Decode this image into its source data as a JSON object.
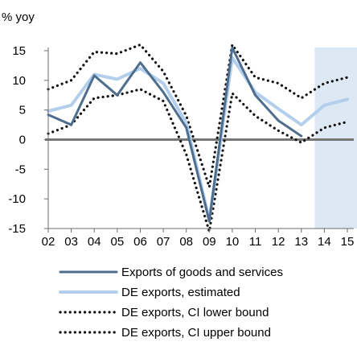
{
  "chart_data": {
    "type": "line",
    "ylabel": "% yoy",
    "ylim": [
      -15,
      15
    ],
    "yticks": [
      15,
      10,
      5,
      0,
      -5,
      -10,
      -15
    ],
    "x": [
      2,
      3,
      4,
      5,
      6,
      7,
      8,
      9,
      10,
      11,
      12,
      13,
      14,
      15
    ],
    "xticklabels": [
      "02",
      "03",
      "04",
      "05",
      "06",
      "07",
      "08",
      "09",
      "10",
      "11",
      "12",
      "13",
      "14",
      "15"
    ],
    "grid": false,
    "zero_line": true,
    "shaded_region": {
      "from": 14,
      "to": 15,
      "color": "#dde8f5"
    },
    "legend_position": "bottom",
    "series": [
      {
        "name": "Exports of goods and services",
        "color": "#4f6e8e",
        "style": "solid",
        "x": [
          2,
          3,
          4,
          5,
          6,
          7,
          8,
          9,
          10,
          11,
          12,
          13
        ],
        "values": [
          4.2,
          2.5,
          10.8,
          7.5,
          13.0,
          8.0,
          2.0,
          -13.8,
          15.5,
          7.5,
          3.2,
          0.6
        ]
      },
      {
        "name": "DE exports, estimated",
        "color": "#b3cfec",
        "style": "solid",
        "x": [
          2,
          3,
          4,
          5,
          6,
          7,
          8,
          9,
          10,
          11,
          12,
          13,
          14,
          15
        ],
        "values": [
          4.8,
          5.8,
          11.0,
          10.2,
          12.0,
          9.5,
          2.8,
          -13.5,
          13.8,
          8.0,
          5.2,
          2.5,
          5.8,
          6.8
        ]
      },
      {
        "name": "DE exports, CI lower bound",
        "color": "#111111",
        "style": "dotted",
        "x": [
          2,
          3,
          4,
          5,
          6,
          7,
          8,
          9,
          10,
          11,
          12,
          13,
          14,
          15
        ],
        "values": [
          1.0,
          2.5,
          7.0,
          7.5,
          8.5,
          6.5,
          -2.5,
          -15.5,
          7.8,
          4.0,
          1.5,
          -0.5,
          2.0,
          3.0
        ]
      },
      {
        "name": "DE exports, CI upper bound",
        "color": "#111111",
        "style": "dotted",
        "x": [
          2,
          3,
          4,
          5,
          6,
          7,
          8,
          9,
          10,
          11,
          12,
          13,
          14,
          15
        ],
        "values": [
          8.5,
          10.0,
          14.8,
          14.5,
          16.0,
          11.5,
          4.0,
          -8.0,
          16.0,
          10.5,
          9.5,
          7.0,
          9.5,
          10.5
        ]
      }
    ]
  },
  "colors": {
    "axis": "#6d6d6d",
    "zero_line": "#777777",
    "text": "#000000"
  }
}
